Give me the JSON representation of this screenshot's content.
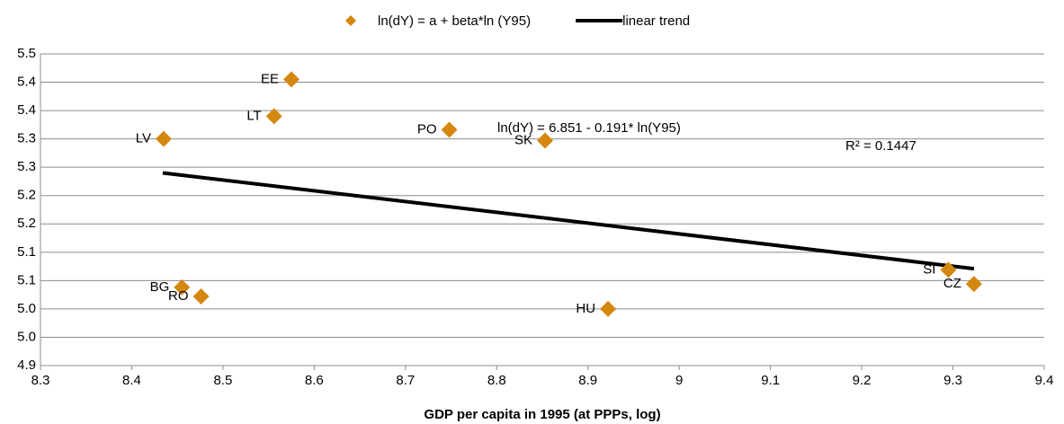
{
  "chart_data": {
    "type": "scatter",
    "xlabel": "GDP per capita in 1995 (at PPPs, log)",
    "xlim": [
      8.3,
      9.4
    ],
    "xticks": [
      8.3,
      8.4,
      8.5,
      8.6,
      8.7,
      8.8,
      8.9,
      9.0,
      9.1,
      9.2,
      9.3,
      9.4
    ],
    "ylim": [
      4.9,
      5.45
    ],
    "yticks": [
      4.9,
      {
        "value": 4.95,
        "label": "5.0"
      },
      {
        "value": 5.0,
        "label": "5.0"
      },
      {
        "value": 5.05,
        "label": "5.1"
      },
      5.1,
      {
        "value": 5.15,
        "label": "5.2"
      },
      5.2,
      {
        "value": 5.25,
        "label": "5.3"
      },
      5.3,
      {
        "value": 5.35,
        "label": "5.4"
      },
      5.4,
      {
        "value": 5.45,
        "label": "5.5"
      }
    ],
    "grid": true,
    "series": [
      {
        "name": "ln(dY) = a + beta*ln (Y95)",
        "color": "#d4880f",
        "marker": "diamond",
        "x": [
          8.575,
          8.556,
          8.435,
          8.748,
          8.853,
          9.295,
          9.323,
          8.455,
          8.476,
          8.922
        ],
        "values": [
          5.405,
          5.34,
          5.3,
          5.316,
          5.297,
          5.069,
          5.044,
          5.038,
          5.022,
          5.0
        ],
        "labels": [
          "EE",
          "LT",
          "LV",
          "PO",
          "SK",
          "SI",
          "CZ",
          "BG",
          "RO",
          "HU"
        ]
      },
      {
        "name": "linear trend",
        "color": "#000000",
        "type": "line",
        "x": [
          8.434,
          9.323
        ],
        "values": [
          5.24,
          5.071
        ]
      }
    ],
    "annotations": [
      "ln(dY) = 6.851 - 0.191* ln(Y95)",
      "R² = 0.1447"
    ]
  }
}
